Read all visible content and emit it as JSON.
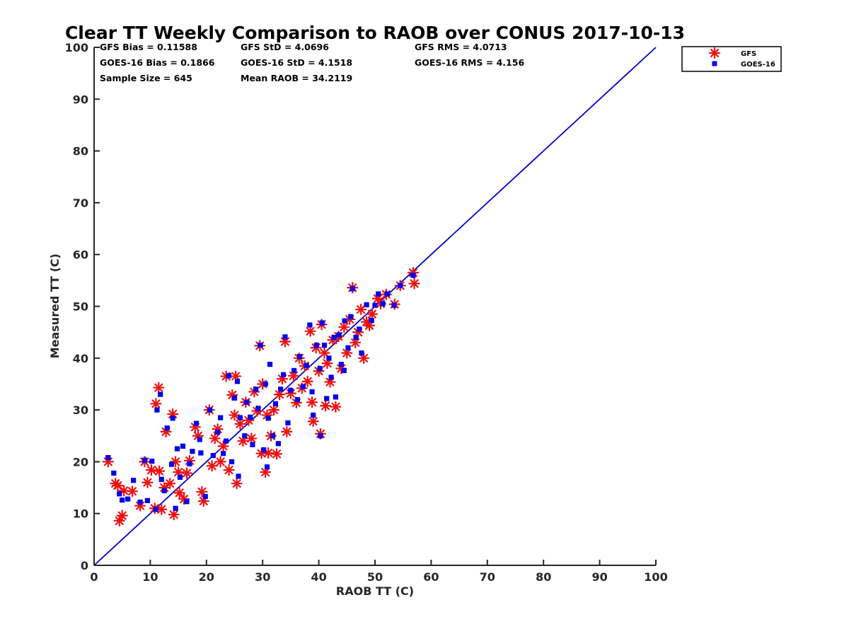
{
  "chart_data": {
    "type": "scatter",
    "title": "Clear TT Weekly Comparison to RAOB over CONUS 2017-10-13",
    "xlabel": "RAOB TT (C)",
    "ylabel": "Measured TT (C)",
    "xlim": [
      0,
      100
    ],
    "ylim": [
      0,
      100
    ],
    "xticks": [
      "0",
      "10",
      "20",
      "30",
      "40",
      "50",
      "60",
      "70",
      "80",
      "90",
      "100"
    ],
    "yticks": [
      "0",
      "10",
      "20",
      "30",
      "40",
      "50",
      "60",
      "70",
      "80",
      "90",
      "100"
    ],
    "grid": false,
    "legend_position": "top-right-outside",
    "stats": {
      "gfs_bias": "GFS Bias = 0.11588",
      "gfs_std": "GFS StD = 4.0696",
      "gfs_rms": "GFS RMS = 4.0713",
      "goes_bias": "GOES-16 Bias = 0.1866",
      "goes_std": "GOES-16 StD = 4.1518",
      "goes_rms": "GOES-16 RMS = 4.156",
      "sample_size": "Sample Size = 645",
      "mean_raob": "Mean RAOB = 34.2119"
    },
    "reference_line": {
      "name": "1:1 line",
      "x": [
        0,
        100
      ],
      "y": [
        0,
        100
      ],
      "color": "#0000cc"
    },
    "series": [
      {
        "name": "GFS",
        "marker": "asterisk",
        "color": "#ee1111",
        "points": [
          [
            2.5,
            20
          ],
          [
            3.8,
            15.8
          ],
          [
            4.2,
            15.4
          ],
          [
            4.5,
            8.6
          ],
          [
            5,
            9.6
          ],
          [
            5.3,
            14.4
          ],
          [
            6.8,
            14.3
          ],
          [
            8.2,
            11.5
          ],
          [
            9,
            20
          ],
          [
            9.5,
            16
          ],
          [
            10.2,
            18.4
          ],
          [
            10.8,
            11
          ],
          [
            11,
            31.2
          ],
          [
            11.5,
            34.3
          ],
          [
            11.6,
            18.2
          ],
          [
            12,
            10.8
          ],
          [
            12.5,
            15
          ],
          [
            12.8,
            25.8
          ],
          [
            13.5,
            15.8
          ],
          [
            14,
            29.2
          ],
          [
            14.2,
            9.8
          ],
          [
            14.5,
            20
          ],
          [
            15,
            18
          ],
          [
            15.2,
            14
          ],
          [
            16,
            12.8
          ],
          [
            16.5,
            17.8
          ],
          [
            17,
            20.2
          ],
          [
            18,
            26.7
          ],
          [
            18.5,
            25
          ],
          [
            19.2,
            14.2
          ],
          [
            19.5,
            12.4
          ],
          [
            20.5,
            30
          ],
          [
            21,
            19.2
          ],
          [
            21.5,
            24.5
          ],
          [
            22,
            26.3
          ],
          [
            22.5,
            20
          ],
          [
            23,
            23
          ],
          [
            23.5,
            36.5
          ],
          [
            24,
            18.4
          ],
          [
            24.6,
            32.9
          ],
          [
            25,
            29
          ],
          [
            25.2,
            36.5
          ],
          [
            25.4,
            15.8
          ],
          [
            26,
            27.3
          ],
          [
            26.5,
            24
          ],
          [
            27,
            31.5
          ],
          [
            27.5,
            28
          ],
          [
            28,
            24.5
          ],
          [
            28.5,
            33.5
          ],
          [
            29,
            29.8
          ],
          [
            29.5,
            42.4
          ],
          [
            29.8,
            21.6
          ],
          [
            30,
            35
          ],
          [
            30.5,
            18
          ],
          [
            30.8,
            29
          ],
          [
            31,
            21.7
          ],
          [
            31.5,
            25
          ],
          [
            32,
            30
          ],
          [
            32.5,
            21.5
          ],
          [
            33,
            33
          ],
          [
            33.5,
            36
          ],
          [
            34,
            43.2
          ],
          [
            34.3,
            25.8
          ],
          [
            35,
            33.2
          ],
          [
            35.5,
            36.6
          ],
          [
            36,
            31.4
          ],
          [
            36.5,
            40
          ],
          [
            37,
            34.2
          ],
          [
            37.5,
            38.5
          ],
          [
            38,
            35.5
          ],
          [
            38.5,
            45.2
          ],
          [
            38.8,
            31.5
          ],
          [
            39,
            27.8
          ],
          [
            39.5,
            42
          ],
          [
            40,
            37.5
          ],
          [
            40.3,
            25.4
          ],
          [
            40.5,
            46.5
          ],
          [
            41,
            41
          ],
          [
            41.2,
            30.8
          ],
          [
            41.5,
            39
          ],
          [
            42,
            35.4
          ],
          [
            42.5,
            43.5
          ],
          [
            43,
            30.6
          ],
          [
            43.5,
            44.2
          ],
          [
            44,
            38
          ],
          [
            44.5,
            46
          ],
          [
            45,
            41
          ],
          [
            45.5,
            47.5
          ],
          [
            46,
            53.6
          ],
          [
            46.5,
            43
          ],
          [
            47,
            45
          ],
          [
            47.5,
            49.4
          ],
          [
            48,
            40
          ],
          [
            48.5,
            47
          ],
          [
            49,
            46.3
          ],
          [
            49.5,
            48.5
          ],
          [
            50.5,
            51.5
          ],
          [
            51,
            50.5
          ],
          [
            52,
            52.3
          ],
          [
            53.5,
            50.4
          ],
          [
            54.5,
            54
          ],
          [
            56.8,
            56.5
          ],
          [
            57,
            54.4
          ]
        ]
      },
      {
        "name": "GOES-16",
        "marker": "square",
        "color": "#0000ee",
        "points": [
          [
            2.5,
            20.8
          ],
          [
            3.5,
            17.8
          ],
          [
            4.5,
            13.8
          ],
          [
            5,
            12.6
          ],
          [
            6,
            12.8
          ],
          [
            7,
            16.4
          ],
          [
            8.2,
            12.2
          ],
          [
            9,
            20.3
          ],
          [
            9.5,
            12.5
          ],
          [
            10.3,
            20.1
          ],
          [
            11,
            10.8
          ],
          [
            11.2,
            30
          ],
          [
            11.8,
            33
          ],
          [
            12,
            16.6
          ],
          [
            12.5,
            14.4
          ],
          [
            13,
            26.5
          ],
          [
            13.8,
            19.5
          ],
          [
            14,
            28.4
          ],
          [
            14.5,
            11
          ],
          [
            14.8,
            22.5
          ],
          [
            15.3,
            17
          ],
          [
            15.8,
            23
          ],
          [
            16.5,
            12.3
          ],
          [
            17,
            19.6
          ],
          [
            17.5,
            22
          ],
          [
            18.2,
            27.4
          ],
          [
            18.8,
            24.3
          ],
          [
            19,
            21.7
          ],
          [
            19.8,
            13.3
          ],
          [
            20.6,
            30
          ],
          [
            21.2,
            21.2
          ],
          [
            22,
            25.7
          ],
          [
            22.5,
            28.5
          ],
          [
            23,
            21.6
          ],
          [
            23.5,
            24
          ],
          [
            24,
            36.6
          ],
          [
            24.5,
            20
          ],
          [
            25,
            32.3
          ],
          [
            25.5,
            35.5
          ],
          [
            25.7,
            17.2
          ],
          [
            26,
            28.5
          ],
          [
            26.8,
            25
          ],
          [
            27.2,
            31.5
          ],
          [
            27.8,
            28.6
          ],
          [
            28.2,
            23.3
          ],
          [
            28.8,
            34
          ],
          [
            29.2,
            30.3
          ],
          [
            29.6,
            42.5
          ],
          [
            30.2,
            22.3
          ],
          [
            30.5,
            35
          ],
          [
            30.8,
            19
          ],
          [
            31,
            28.4
          ],
          [
            31.3,
            38.8
          ],
          [
            31.8,
            25
          ],
          [
            32.3,
            31.2
          ],
          [
            32.8,
            23.5
          ],
          [
            33.2,
            34
          ],
          [
            33.7,
            36.8
          ],
          [
            34,
            44.1
          ],
          [
            34.5,
            27.5
          ],
          [
            35,
            33.8
          ],
          [
            35.6,
            37.6
          ],
          [
            36.2,
            32
          ],
          [
            36.6,
            40.3
          ],
          [
            37.2,
            34.5
          ],
          [
            37.8,
            38.6
          ],
          [
            38.4,
            46.4
          ],
          [
            38.8,
            33.5
          ],
          [
            39,
            29
          ],
          [
            39.6,
            42.5
          ],
          [
            40.2,
            38
          ],
          [
            40.3,
            25
          ],
          [
            40.6,
            46.8
          ],
          [
            41,
            42.5
          ],
          [
            41.4,
            32.2
          ],
          [
            41.8,
            40
          ],
          [
            42.2,
            36.3
          ],
          [
            42.7,
            44
          ],
          [
            43,
            32.5
          ],
          [
            43.6,
            44.5
          ],
          [
            44,
            38.8
          ],
          [
            44.5,
            37.6
          ],
          [
            44.6,
            47.2
          ],
          [
            45.2,
            42
          ],
          [
            45.7,
            48
          ],
          [
            46,
            53.4
          ],
          [
            46.6,
            44
          ],
          [
            47.2,
            45.6
          ],
          [
            47.6,
            41
          ],
          [
            48.5,
            50.3
          ],
          [
            49.4,
            47.3
          ],
          [
            50,
            50.2
          ],
          [
            50.6,
            52.4
          ],
          [
            51.4,
            50.5
          ],
          [
            52.2,
            52.4
          ],
          [
            53.4,
            50.2
          ],
          [
            54.5,
            54
          ],
          [
            56.8,
            56
          ]
        ]
      }
    ]
  }
}
